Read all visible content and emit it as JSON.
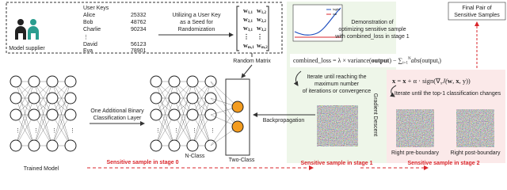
{
  "supplier": {
    "label": "Model supplier",
    "keys_title": "User Keys",
    "users": [
      {
        "name": "Alice",
        "key": "25332"
      },
      {
        "name": "Bob",
        "key": "48762"
      },
      {
        "name": "Charlie",
        "key": "90234"
      },
      {
        "name": "David",
        "key": "56123"
      },
      {
        "name": "Eva",
        "key": "78901"
      }
    ],
    "ellipsis": "⋮"
  },
  "seed_text": [
    "Utilizing a User Key",
    "as a Seed for",
    "Randomization"
  ],
  "matrix": {
    "label": "Random Matrix",
    "rows": [
      [
        {
          "base": "w",
          "sub": "1,1"
        },
        {
          "base": "w",
          "sub": "1,2"
        }
      ],
      [
        {
          "base": "w",
          "sub": "2,1"
        },
        {
          "base": "w",
          "sub": "2,2"
        }
      ],
      [
        {
          "base": "w",
          "sub": "3,1"
        },
        {
          "base": "w",
          "sub": "3,2"
        }
      ],
      [
        {
          "base": "⋮",
          "sub": ""
        },
        {
          "base": "⋮",
          "sub": ""
        }
      ],
      [
        {
          "base": "w",
          "sub": "m,1"
        },
        {
          "base": "w",
          "sub": "m,2"
        }
      ]
    ]
  },
  "models": {
    "trained": "Trained Model",
    "extra_layer": [
      "One Additional Binary",
      "Classification Layer"
    ],
    "n_class": "N-Class",
    "two_class": "Two-Class",
    "backprop": "Backpropagation"
  },
  "stage1": {
    "demo": [
      "Demonstration of",
      "optimizing sensitive sample",
      "with combined_loss in stage 1"
    ],
    "legend": [
      "logits",
      "var"
    ],
    "formula": [
      {
        "text": "combined_loss = λ × variance(",
        "style": "n"
      },
      {
        "text": "output",
        "style": "b"
      },
      {
        "text": ") − ",
        "style": "n"
      },
      {
        "text": "∑",
        "style": "n"
      },
      {
        "text": "i=1",
        "style": "sub"
      },
      {
        "text": "N",
        "style": "sup"
      },
      {
        "text": "abs",
        "style": "i"
      },
      {
        "text": "(output",
        "style": "n"
      },
      {
        "text": "i",
        "style": "sub"
      },
      {
        "text": ")",
        "style": "n"
      }
    ],
    "iterate": [
      "Iterate until reaching the",
      "maximum number",
      "of iterations or convergence"
    ],
    "method": "Gradient Descent"
  },
  "stage2": {
    "formula": [
      {
        "text": "x",
        "style": "b"
      },
      {
        "text": " = ",
        "style": "n"
      },
      {
        "text": "x",
        "style": "b"
      },
      {
        "text": " + α · sign(∇",
        "style": "n"
      },
      {
        "text": "x",
        "style": "sub"
      },
      {
        "text": "J(",
        "style": "i"
      },
      {
        "text": "w",
        "style": "b"
      },
      {
        "text": ", ",
        "style": "n"
      },
      {
        "text": "x",
        "style": "b"
      },
      {
        "text": ", y))",
        "style": "n"
      }
    ],
    "iterate": "Iterate until the top-1 classification changes",
    "images": [
      "Right pre-boundary",
      "Right post-boundary"
    ]
  },
  "final": [
    "Final Pair of",
    "Sensitive Samples"
  ],
  "samples": [
    "Sensitive sample in stage 0",
    "Sensitive sample in stage 1",
    "Sensitive sample in stage 2"
  ]
}
